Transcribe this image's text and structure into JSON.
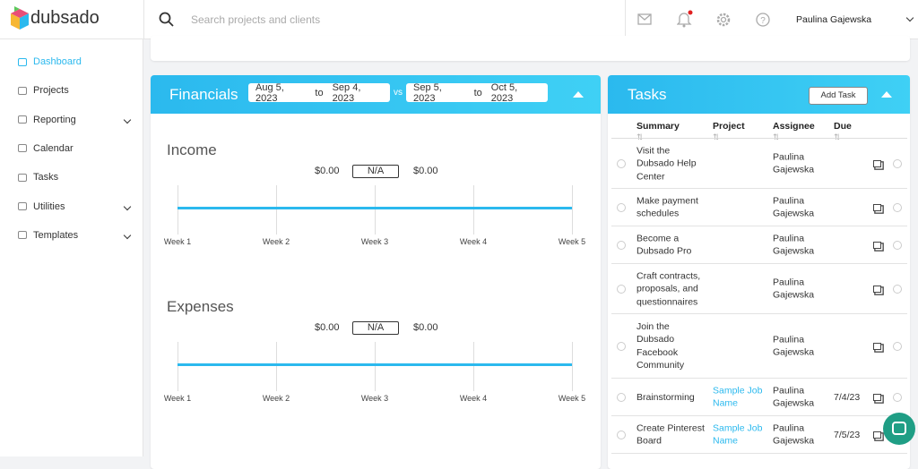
{
  "header": {
    "logo": "dubsado",
    "search_placeholder": "Search projects and clients",
    "user": "Paulina Gajewska"
  },
  "nav": [
    "Dashboard",
    "Projects",
    "Reporting",
    "Calendar",
    "Tasks",
    "Utilities",
    "Templates"
  ],
  "financials": {
    "title": "Financials",
    "range1": {
      "from": "Aug 5, 2023",
      "to": "to",
      "end": "Sep 4, 2023"
    },
    "vs": "vs",
    "range2": {
      "from": "Sep 5, 2023",
      "to": "to",
      "end": "Oct 5, 2023"
    },
    "sections": [
      {
        "title": "Income",
        "current": "$0.00",
        "change": "N/A",
        "previous": "$0.00",
        "weeks": [
          "Week 1",
          "Week 2",
          "Week 3",
          "Week 4",
          "Week 5"
        ]
      },
      {
        "title": "Expenses",
        "current": "$0.00",
        "change": "N/A",
        "previous": "$0.00",
        "weeks": [
          "Week 1",
          "Week 2",
          "Week 3",
          "Week 4",
          "Week 5"
        ]
      }
    ]
  },
  "tasks": {
    "title": "Tasks",
    "add": "Add Task",
    "columns": [
      "Summary",
      "Project",
      "Assignee",
      "Due"
    ],
    "rows": [
      {
        "summary": "Visit the Dubsado Help Center",
        "assignee": "Paulina Gajewska"
      },
      {
        "summary": "Make payment schedules",
        "assignee": "Paulina Gajewska"
      },
      {
        "summary": "Become a Dubsado Pro",
        "assignee": "Paulina Gajewska"
      },
      {
        "summary": "Craft contracts, proposals, and questionnaires",
        "assignee": "Paulina Gajewska"
      },
      {
        "summary": "Join the Dubsado Facebook Community",
        "assignee": "Paulina Gajewska"
      },
      {
        "summary": "Brainstorming",
        "project": "Sample Job Name",
        "assignee": "Paulina Gajewska",
        "due": "7/4/23"
      },
      {
        "summary": "Create Pinterest Board",
        "project": "Sample Job Name",
        "assignee": "Paulina Gajewska",
        "due": "7/5/23"
      }
    ]
  }
}
